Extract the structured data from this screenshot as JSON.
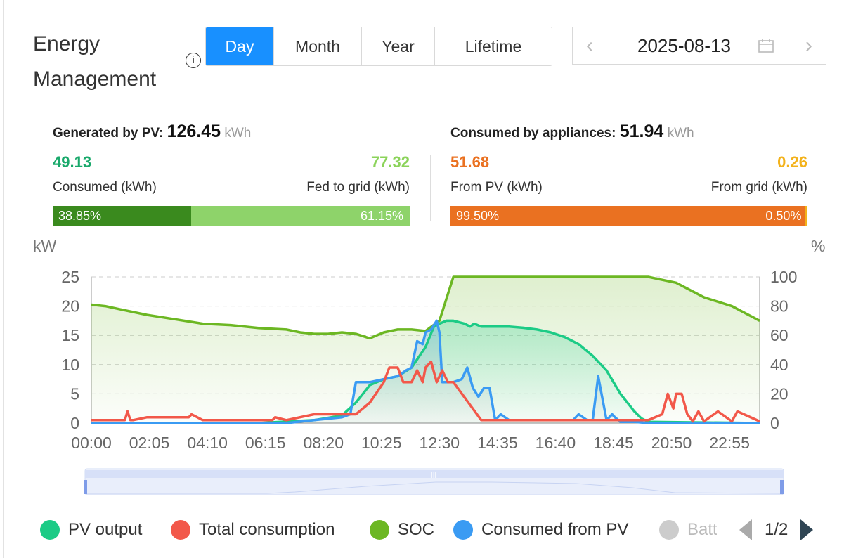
{
  "header": {
    "title_line1": "Energy",
    "title_line2": "Management",
    "info_icon": "info-circle-icon"
  },
  "tabs": [
    {
      "label": "Day",
      "active": true
    },
    {
      "label": "Month",
      "active": false
    },
    {
      "label": "Year",
      "active": false
    },
    {
      "label": "Lifetime",
      "active": false
    }
  ],
  "date": {
    "value": "2025-08-13",
    "prev_icon": "chevron-left-icon",
    "next_icon": "chevron-right-icon",
    "calendar_icon": "calendar-icon"
  },
  "pv": {
    "label": "Generated by PV:",
    "total": "126.45",
    "unit": "kWh",
    "consumed_value": "49.13",
    "consumed_label": "Consumed (kWh)",
    "fed_value": "77.32",
    "fed_label": "Fed to grid (kWh)",
    "consumed_pct": "38.85%",
    "fed_pct": "61.15%",
    "consumed_frac": 0.3885,
    "colors": {
      "consumed": "#3a8a1e",
      "fed": "#8ed36a",
      "consumed_text": "#19a96b",
      "fed_text": "#8bd35a"
    }
  },
  "consumption": {
    "label": "Consumed by appliances:",
    "total": "51.94",
    "unit": "kWh",
    "frompv_value": "51.68",
    "frompv_label": "From PV (kWh)",
    "fromgrid_value": "0.26",
    "fromgrid_label": "From grid (kWh)",
    "frompv_pct": "99.50%",
    "fromgrid_pct": "0.50%",
    "frompv_frac": 0.995,
    "colors": {
      "frompv": "#ea7121",
      "fromgrid": "#f3b21b"
    }
  },
  "legend": {
    "items": [
      {
        "label": "PV output",
        "color": "#1ccb86"
      },
      {
        "label": "Total consumption",
        "color": "#f2584a"
      },
      {
        "label": "SOC",
        "color": "#6cb723"
      },
      {
        "label": "Consumed from PV",
        "color": "#3a9bf3"
      },
      {
        "label": "Batt",
        "color": "#cccccc"
      }
    ],
    "page": "1/2"
  },
  "chart_data": {
    "type": "line",
    "left_axis_unit": "kW",
    "right_axis_unit": "%",
    "ylim": [
      0,
      25
    ],
    "y2lim": [
      0,
      100
    ],
    "yticks": [
      "0",
      "5",
      "10",
      "15",
      "20",
      "25"
    ],
    "y2ticks": [
      "0",
      "20",
      "40",
      "60",
      "80",
      "100"
    ],
    "xlim": [
      0,
      24
    ],
    "xticks": [
      "00:00",
      "02:05",
      "04:10",
      "06:15",
      "08:20",
      "10:25",
      "12:30",
      "14:35",
      "16:40",
      "18:45",
      "20:50",
      "22:55"
    ],
    "grid": true,
    "series": [
      {
        "name": "PV output",
        "axis": "left",
        "color": "#1ccb86",
        "x": [
          0,
          6,
          8,
          9,
          9.5,
          10,
          10.5,
          11,
          11.5,
          12,
          12.3,
          12.5,
          12.75,
          13,
          13.4,
          13.6,
          13.75,
          14,
          14.5,
          15,
          15.5,
          16,
          16.5,
          17,
          17.5,
          18,
          18.5,
          18.75,
          19,
          19.25,
          19.5,
          19.75,
          20,
          24
        ],
        "y": [
          0,
          0,
          0.5,
          1.3,
          3.5,
          6.5,
          7.5,
          8,
          9.5,
          13,
          16.5,
          17,
          17.5,
          17.5,
          17,
          16.5,
          17,
          16.5,
          16.5,
          16.5,
          16.3,
          16,
          15.5,
          14.7,
          13.5,
          11.5,
          9,
          7,
          5,
          3.5,
          2,
          0.8,
          0.2,
          0
        ]
      },
      {
        "name": "Total consumption",
        "axis": "left",
        "color": "#f2584a",
        "x": [
          0,
          1.2,
          1.3,
          1.4,
          1.5,
          2,
          3.5,
          3.6,
          4,
          5,
          6.5,
          6.6,
          7,
          8,
          9.5,
          10,
          10.5,
          10.7,
          11,
          11.2,
          11.5,
          11.7,
          11.9,
          12,
          12.2,
          12.4,
          12.6,
          12.8,
          13,
          14,
          15,
          16,
          17,
          18,
          19,
          20,
          20.5,
          20.7,
          20.9,
          21,
          21.2,
          21.4,
          21.6,
          21.8,
          22,
          22.5,
          23,
          23.2,
          24
        ],
        "y": [
          0.5,
          0.5,
          2,
          0.5,
          0.5,
          1,
          1,
          1.5,
          0.5,
          0.5,
          0.5,
          1,
          0.5,
          1.5,
          1.5,
          3.5,
          7,
          9.5,
          9.5,
          7,
          7,
          9,
          7,
          9.5,
          10.5,
          7,
          9,
          7,
          7,
          0.5,
          0.5,
          0.5,
          0.5,
          0.5,
          0.5,
          0.5,
          1.5,
          5,
          2.5,
          5,
          5,
          1.5,
          0.3,
          2,
          0.3,
          2,
          0.3,
          2,
          0.3
        ]
      },
      {
        "name": "SOC",
        "axis": "right",
        "color": "#6cb723",
        "x": [
          0,
          0.5,
          1,
          2,
          3,
          4,
          5,
          6,
          7,
          7.5,
          8,
          8.5,
          9,
          9.5,
          10,
          10.5,
          11,
          11.5,
          12,
          12.5,
          13,
          14,
          15,
          16,
          17,
          18,
          19,
          20,
          20.5,
          21,
          22,
          23,
          24
        ],
        "y": [
          81,
          80,
          78,
          74,
          71,
          68,
          67,
          65,
          64,
          62,
          61,
          61,
          62,
          61,
          58,
          62,
          64,
          64,
          63,
          70,
          100,
          100,
          100,
          100,
          100,
          100,
          100,
          100,
          98,
          96,
          86,
          80,
          70
        ]
      },
      {
        "name": "Consumed from PV",
        "axis": "left",
        "color": "#3a9bf3",
        "x": [
          0,
          7,
          8,
          9,
          9.3,
          9.5,
          10,
          10.5,
          11,
          11.3,
          11.5,
          11.7,
          11.9,
          12,
          12.2,
          12.4,
          12.5,
          12.6,
          12.8,
          13,
          13.3,
          13.5,
          13.7,
          13.9,
          14.1,
          14.3,
          14.5,
          14.7,
          15,
          16,
          17,
          17.3,
          17.5,
          17.8,
          18,
          18.2,
          18.5,
          18.7,
          18.8,
          19,
          19.5,
          20,
          24
        ],
        "y": [
          0,
          0,
          0.5,
          1,
          1.5,
          7,
          7,
          7.5,
          8,
          9,
          9.5,
          14,
          13.5,
          15.5,
          16,
          17.5,
          15.5,
          7,
          7,
          7,
          7.5,
          9.5,
          6,
          4.5,
          6,
          6,
          0.5,
          1.5,
          0.5,
          0.5,
          0.5,
          0.5,
          1.5,
          0.5,
          0.5,
          8,
          0.5,
          1.5,
          1,
          0.2,
          0.2,
          0,
          0
        ]
      }
    ]
  }
}
